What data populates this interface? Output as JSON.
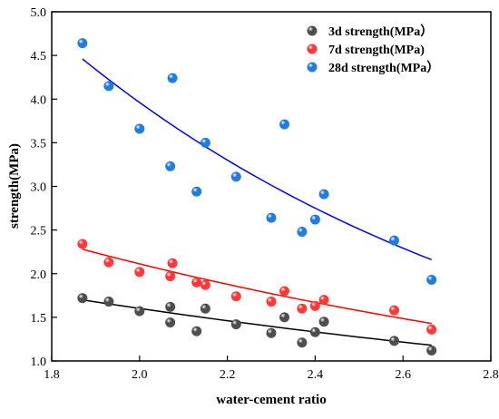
{
  "chart_data": {
    "type": "scatter",
    "xlabel": "water-cement ratio",
    "ylabel": "strength(MPa)",
    "xlim": [
      1.8,
      2.8
    ],
    "ylim": [
      1.0,
      5.0
    ],
    "xticks": [
      "1.8",
      "2.0",
      "2.2",
      "2.4",
      "2.6",
      "2.8"
    ],
    "yticks": [
      "1.0",
      "1.5",
      "2.0",
      "2.5",
      "3.0",
      "3.5",
      "4.0",
      "4.5",
      "5.0"
    ],
    "legend_position": "top-right",
    "grid": false,
    "series": [
      {
        "name": "3d strength(MPa）",
        "color": "#4a4a4a",
        "line_color": "#000000",
        "x": [
          1.87,
          1.93,
          2.0,
          2.07,
          2.07,
          2.13,
          2.15,
          2.22,
          2.3,
          2.33,
          2.37,
          2.4,
          2.42,
          2.58,
          2.665
        ],
        "y": [
          1.72,
          1.68,
          1.57,
          1.62,
          1.44,
          1.34,
          1.6,
          1.42,
          1.32,
          1.5,
          1.21,
          1.33,
          1.45,
          1.23,
          1.12
        ],
        "fit_range": [
          1.87,
          2.665
        ],
        "fit": [
          1.7,
          1.18
        ]
      },
      {
        "name": "7d strength(MPa)",
        "color": "#ff3333",
        "line_color": "#ff0000",
        "x": [
          1.87,
          1.93,
          2.0,
          2.07,
          2.075,
          2.13,
          2.15,
          2.22,
          2.3,
          2.33,
          2.37,
          2.4,
          2.42,
          2.58,
          2.665
        ],
        "y": [
          2.34,
          2.13,
          2.02,
          1.97,
          2.12,
          1.9,
          1.87,
          1.74,
          1.68,
          1.8,
          1.6,
          1.63,
          1.7,
          1.58,
          1.36
        ],
        "fit_range": [
          1.87,
          2.665
        ],
        "fit": [
          2.28,
          1.43
        ]
      },
      {
        "name": "28d strength(MPa）",
        "color": "#1a7ae0",
        "line_color": "#0000ff",
        "x": [
          1.87,
          1.93,
          2.0,
          2.07,
          2.075,
          2.13,
          2.15,
          2.22,
          2.3,
          2.33,
          2.37,
          2.4,
          2.42,
          2.58,
          2.665
        ],
        "y": [
          4.64,
          4.15,
          3.66,
          3.23,
          4.24,
          2.94,
          3.5,
          3.11,
          2.64,
          3.71,
          2.48,
          2.62,
          2.91,
          2.38,
          1.93
        ],
        "fit_range": [
          1.87,
          2.665
        ],
        "fit": [
          4.46,
          2.16
        ]
      }
    ]
  }
}
